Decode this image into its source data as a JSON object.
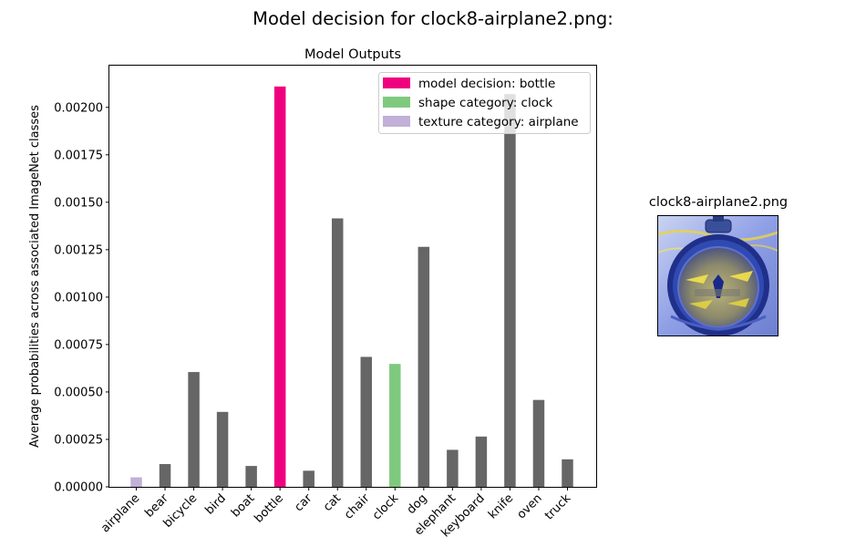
{
  "figure": {
    "title": "Model decision for clock8-airplane2.png:"
  },
  "chart_data": {
    "type": "bar",
    "title": "Model Outputs",
    "xlabel": "",
    "ylabel": "Average probabilities across associated ImageNet classes",
    "categories": [
      "airplane",
      "bear",
      "bicycle",
      "bird",
      "boat",
      "bottle",
      "car",
      "cat",
      "chair",
      "clock",
      "dog",
      "elephant",
      "keyboard",
      "knife",
      "oven",
      "truck"
    ],
    "values": [
      5e-05,
      0.00012,
      0.000605,
      0.000395,
      0.00011,
      0.00211,
      8.5e-05,
      0.001415,
      0.000685,
      0.000648,
      0.001265,
      0.000195,
      0.000265,
      0.00207,
      0.000458,
      0.000145
    ],
    "bar_colors": [
      "#c2b0d8",
      "#666666",
      "#666666",
      "#666666",
      "#666666",
      "#ef007f",
      "#666666",
      "#666666",
      "#666666",
      "#7fc97f",
      "#666666",
      "#666666",
      "#666666",
      "#666666",
      "#666666",
      "#666666"
    ],
    "ylim": [
      0,
      0.00222
    ],
    "yticks": [
      "0.00000",
      "0.00025",
      "0.00050",
      "0.00075",
      "0.00100",
      "0.00125",
      "0.00150",
      "0.00175",
      "0.00200"
    ],
    "ytick_values": [
      0,
      0.00025,
      0.0005,
      0.00075,
      0.001,
      0.00125,
      0.0015,
      0.00175,
      0.002
    ],
    "grid": false,
    "legend_position": "top-right",
    "legend": [
      {
        "label": "model decision: bottle",
        "color": "#ef007f"
      },
      {
        "label": "shape category: clock",
        "color": "#7fc97f"
      },
      {
        "label": "texture category: airplane",
        "color": "#c2b0d8"
      }
    ]
  },
  "thumbnail": {
    "title": "clock8-airplane2.png",
    "description_icon": "stylized-clock-image"
  }
}
